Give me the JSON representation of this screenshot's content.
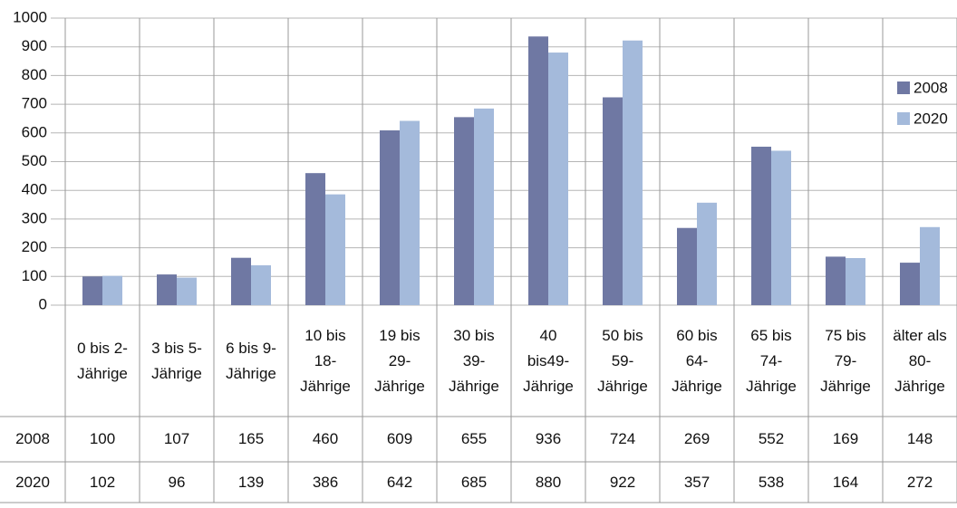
{
  "chart_data": {
    "type": "bar",
    "categories": [
      "0 bis 2-\nJährige",
      "3 bis 5-\nJährige",
      "6 bis 9-\nJährige",
      "10 bis\n18-\nJährige",
      "19 bis\n29-\nJährige",
      "30 bis\n39-\nJährige",
      "40\nbis49-\nJährige",
      "50 bis\n59-\nJährige",
      "60 bis\n64-\nJährige",
      "65 bis\n74-\nJährige",
      "75 bis\n79-\nJährige",
      "älter als\n80-\nJährige"
    ],
    "series": [
      {
        "name": "2008",
        "color": "#6f78a3",
        "values": [
          100,
          107,
          165,
          460,
          609,
          655,
          936,
          724,
          269,
          552,
          169,
          148
        ]
      },
      {
        "name": "2020",
        "color": "#a4badb",
        "values": [
          102,
          96,
          139,
          386,
          642,
          685,
          880,
          922,
          357,
          538,
          164,
          272
        ]
      }
    ],
    "ylim": [
      0,
      1000
    ],
    "yticks": [
      0,
      100,
      200,
      300,
      400,
      500,
      600,
      700,
      800,
      900,
      1000
    ],
    "grid": true,
    "legend": "right"
  }
}
